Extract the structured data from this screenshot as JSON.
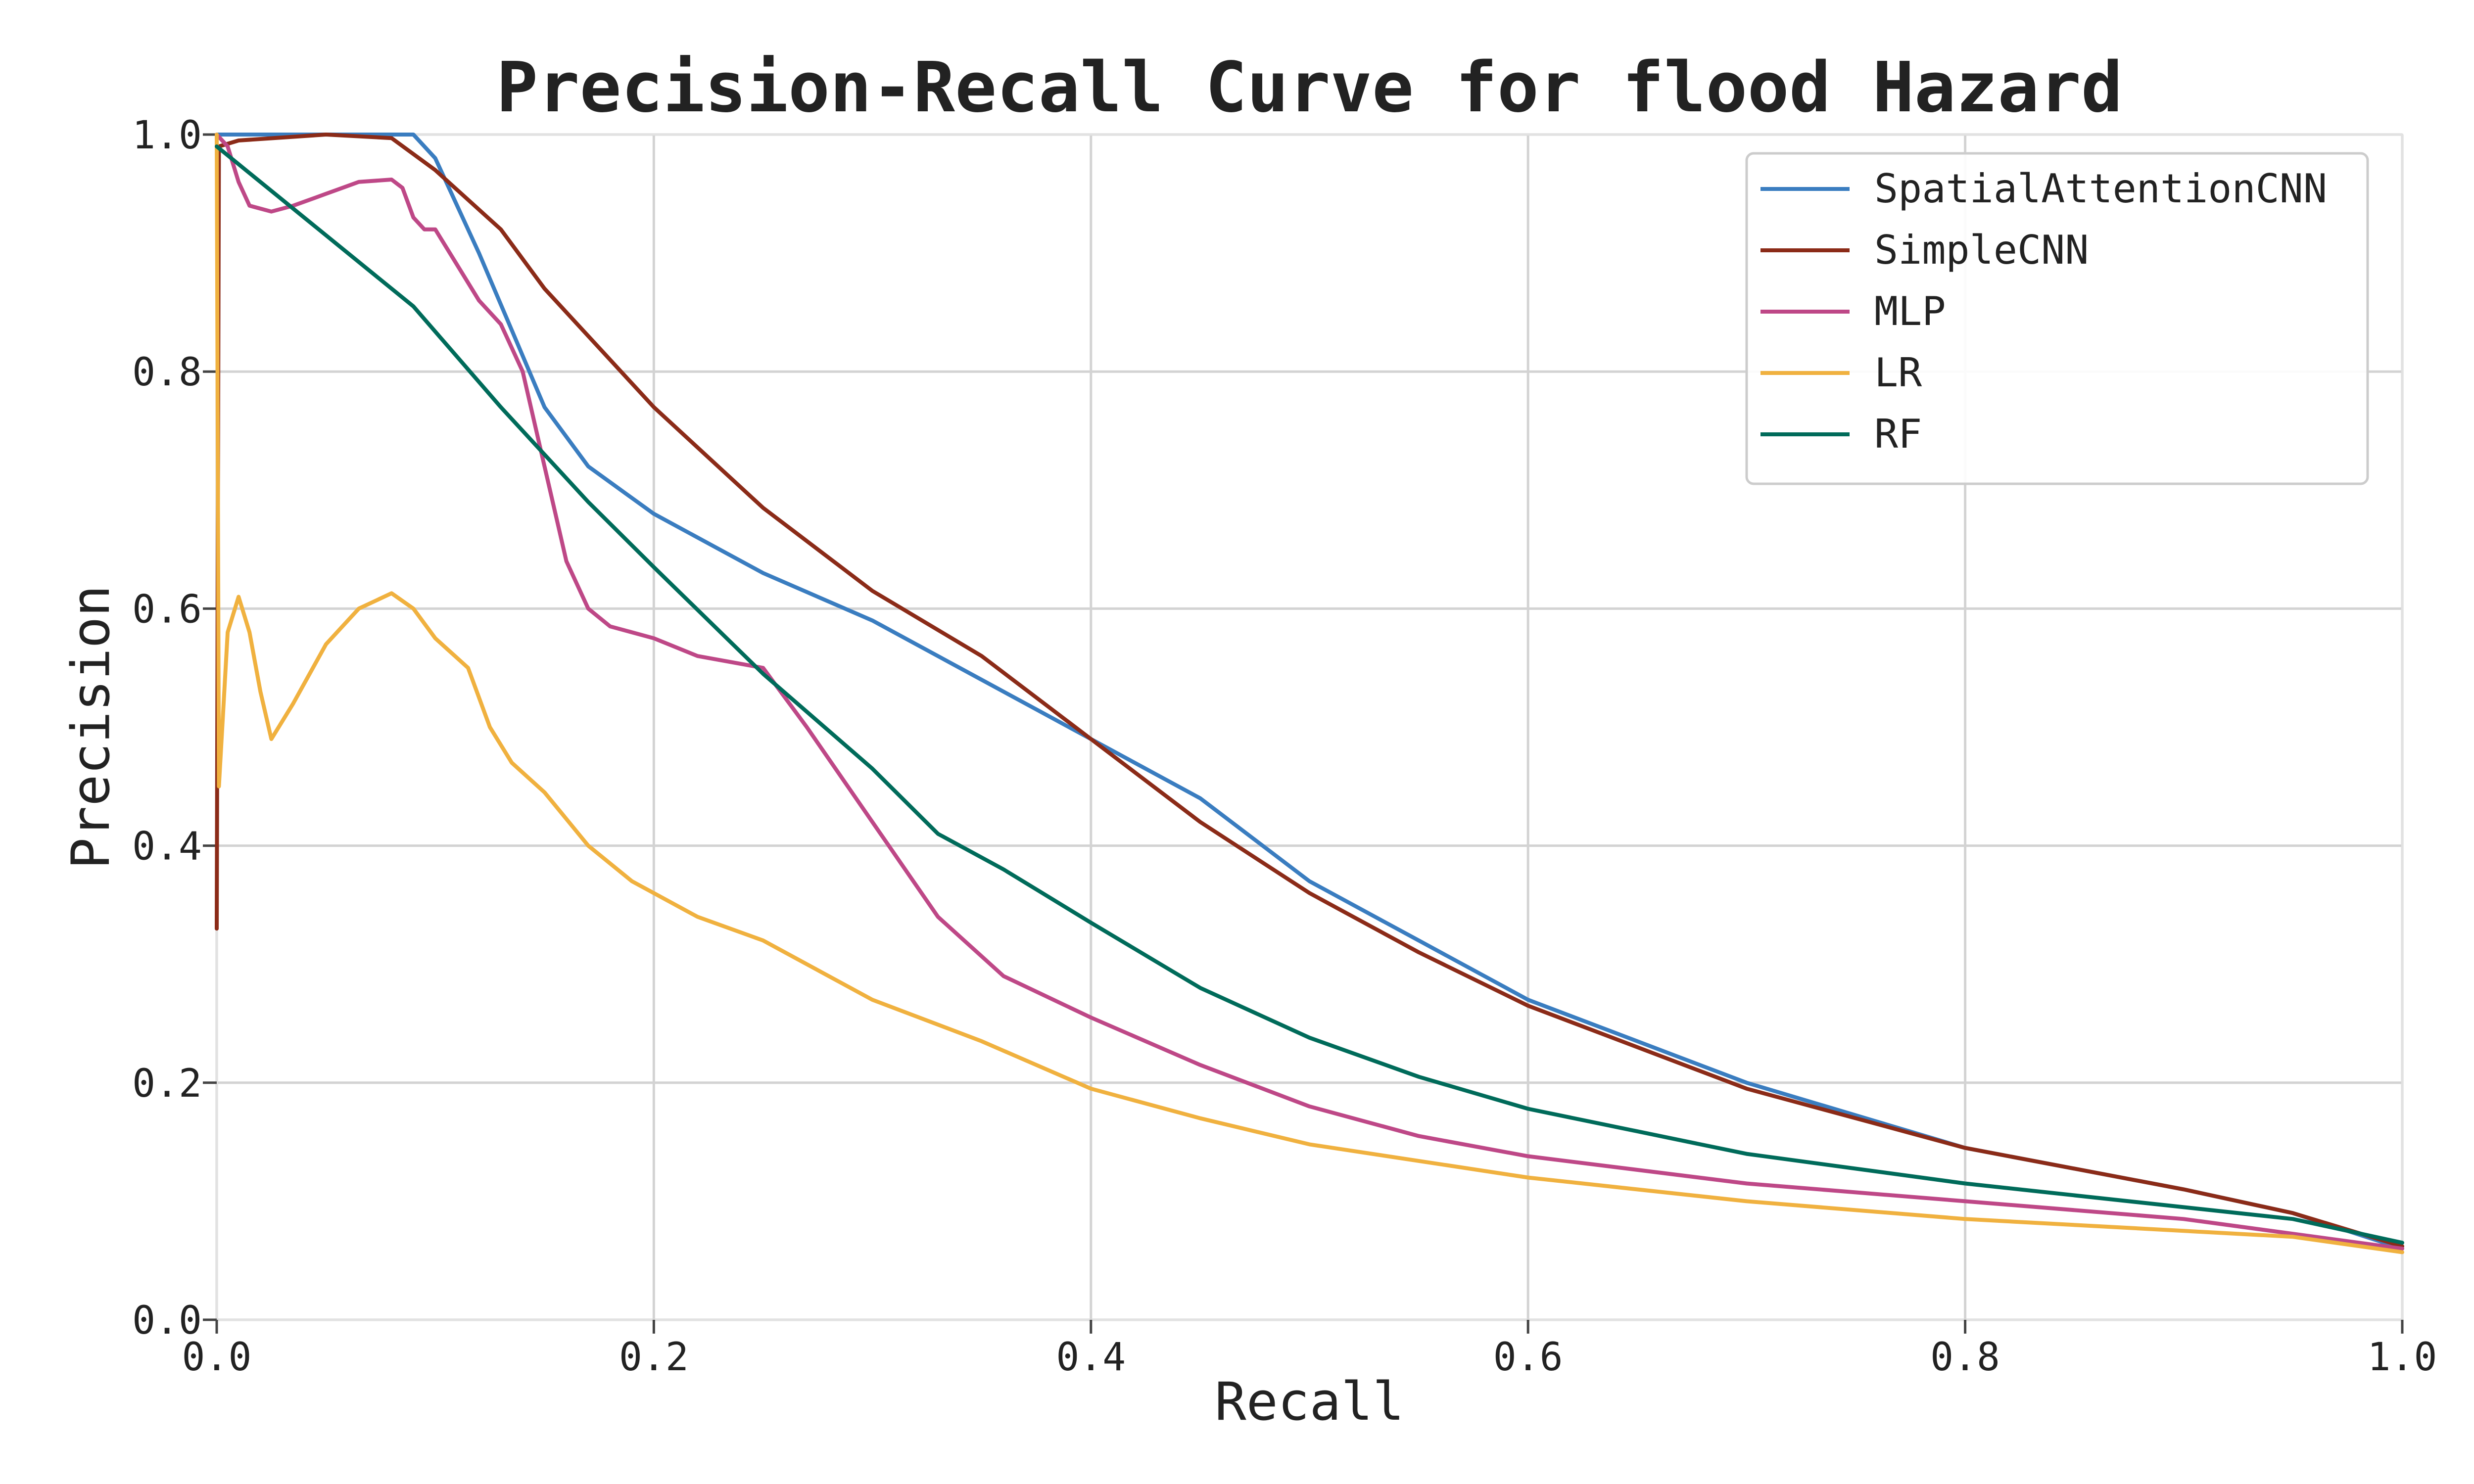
{
  "chart_data": {
    "type": "line",
    "title": "Precision-Recall Curve for flood Hazard",
    "xlabel": "Recall",
    "ylabel": "Precision",
    "xlim": [
      0.0,
      1.0
    ],
    "ylim": [
      0.0,
      1.0
    ],
    "xticks": [
      "0.0",
      "0.2",
      "0.4",
      "0.6",
      "0.8",
      "1.0"
    ],
    "yticks": [
      "0.0",
      "0.2",
      "0.4",
      "0.6",
      "0.8",
      "1.0"
    ],
    "grid": true,
    "legend_position": "top-right",
    "series": [
      {
        "name": "SpatialAttentionCNN",
        "color": "#3a7dc0",
        "points": [
          [
            0.0,
            1.0
          ],
          [
            0.05,
            1.0
          ],
          [
            0.09,
            1.0
          ],
          [
            0.1,
            0.98
          ],
          [
            0.12,
            0.9
          ],
          [
            0.15,
            0.77
          ],
          [
            0.17,
            0.72
          ],
          [
            0.2,
            0.68
          ],
          [
            0.25,
            0.63
          ],
          [
            0.3,
            0.59
          ],
          [
            0.35,
            0.54
          ],
          [
            0.4,
            0.49
          ],
          [
            0.45,
            0.44
          ],
          [
            0.5,
            0.37
          ],
          [
            0.55,
            0.32
          ],
          [
            0.6,
            0.27
          ],
          [
            0.7,
            0.2
          ],
          [
            0.8,
            0.145
          ],
          [
            0.9,
            0.11
          ],
          [
            0.95,
            0.09
          ],
          [
            1.0,
            0.06
          ]
        ]
      },
      {
        "name": "SimpleCNN",
        "color": "#8b2b18",
        "points": [
          [
            0.0,
            0.33
          ],
          [
            0.001,
            0.99
          ],
          [
            0.01,
            0.995
          ],
          [
            0.05,
            1.0
          ],
          [
            0.08,
            0.997
          ],
          [
            0.1,
            0.97
          ],
          [
            0.13,
            0.92
          ],
          [
            0.15,
            0.87
          ],
          [
            0.2,
            0.77
          ],
          [
            0.25,
            0.685
          ],
          [
            0.3,
            0.615
          ],
          [
            0.35,
            0.56
          ],
          [
            0.4,
            0.49
          ],
          [
            0.45,
            0.42
          ],
          [
            0.5,
            0.36
          ],
          [
            0.55,
            0.31
          ],
          [
            0.6,
            0.265
          ],
          [
            0.7,
            0.195
          ],
          [
            0.8,
            0.145
          ],
          [
            0.9,
            0.11
          ],
          [
            0.95,
            0.09
          ],
          [
            1.0,
            0.062
          ]
        ]
      },
      {
        "name": "MLP",
        "color": "#be4887",
        "points": [
          [
            0.0,
            1.0
          ],
          [
            0.005,
            0.99
          ],
          [
            0.01,
            0.96
          ],
          [
            0.015,
            0.94
          ],
          [
            0.025,
            0.935
          ],
          [
            0.035,
            0.94
          ],
          [
            0.05,
            0.95
          ],
          [
            0.065,
            0.96
          ],
          [
            0.08,
            0.962
          ],
          [
            0.085,
            0.955
          ],
          [
            0.09,
            0.93
          ],
          [
            0.095,
            0.92
          ],
          [
            0.1,
            0.92
          ],
          [
            0.11,
            0.89
          ],
          [
            0.12,
            0.86
          ],
          [
            0.13,
            0.84
          ],
          [
            0.14,
            0.8
          ],
          [
            0.15,
            0.72
          ],
          [
            0.16,
            0.64
          ],
          [
            0.17,
            0.6
          ],
          [
            0.18,
            0.585
          ],
          [
            0.2,
            0.575
          ],
          [
            0.22,
            0.56
          ],
          [
            0.25,
            0.55
          ],
          [
            0.27,
            0.5
          ],
          [
            0.3,
            0.42
          ],
          [
            0.33,
            0.34
          ],
          [
            0.36,
            0.29
          ],
          [
            0.4,
            0.255
          ],
          [
            0.45,
            0.215
          ],
          [
            0.5,
            0.18
          ],
          [
            0.55,
            0.155
          ],
          [
            0.6,
            0.138
          ],
          [
            0.7,
            0.115
          ],
          [
            0.8,
            0.1
          ],
          [
            0.9,
            0.085
          ],
          [
            1.0,
            0.06
          ]
        ]
      },
      {
        "name": "LR",
        "color": "#f0b13f",
        "points": [
          [
            0.0,
            1.0
          ],
          [
            0.001,
            0.45
          ],
          [
            0.005,
            0.58
          ],
          [
            0.01,
            0.61
          ],
          [
            0.015,
            0.58
          ],
          [
            0.02,
            0.53
          ],
          [
            0.025,
            0.49
          ],
          [
            0.035,
            0.52
          ],
          [
            0.05,
            0.57
          ],
          [
            0.065,
            0.6
          ],
          [
            0.08,
            0.613
          ],
          [
            0.09,
            0.6
          ],
          [
            0.1,
            0.575
          ],
          [
            0.115,
            0.55
          ],
          [
            0.125,
            0.5
          ],
          [
            0.135,
            0.47
          ],
          [
            0.15,
            0.445
          ],
          [
            0.17,
            0.4
          ],
          [
            0.19,
            0.37
          ],
          [
            0.22,
            0.34
          ],
          [
            0.25,
            0.32
          ],
          [
            0.3,
            0.27
          ],
          [
            0.35,
            0.235
          ],
          [
            0.4,
            0.195
          ],
          [
            0.45,
            0.17
          ],
          [
            0.5,
            0.148
          ],
          [
            0.6,
            0.12
          ],
          [
            0.7,
            0.1
          ],
          [
            0.8,
            0.085
          ],
          [
            0.9,
            0.075
          ],
          [
            0.95,
            0.07
          ],
          [
            1.0,
            0.057
          ]
        ]
      },
      {
        "name": "RF",
        "color": "#006b5a",
        "points": [
          [
            0.0,
            0.99
          ],
          [
            0.09,
            0.855
          ],
          [
            0.13,
            0.77
          ],
          [
            0.17,
            0.69
          ],
          [
            0.2,
            0.635
          ],
          [
            0.25,
            0.545
          ],
          [
            0.3,
            0.465
          ],
          [
            0.33,
            0.41
          ],
          [
            0.36,
            0.38
          ],
          [
            0.4,
            0.335
          ],
          [
            0.45,
            0.28
          ],
          [
            0.5,
            0.238
          ],
          [
            0.55,
            0.205
          ],
          [
            0.6,
            0.178
          ],
          [
            0.7,
            0.14
          ],
          [
            0.8,
            0.115
          ],
          [
            0.9,
            0.095
          ],
          [
            0.95,
            0.085
          ],
          [
            1.0,
            0.065
          ]
        ]
      }
    ]
  }
}
